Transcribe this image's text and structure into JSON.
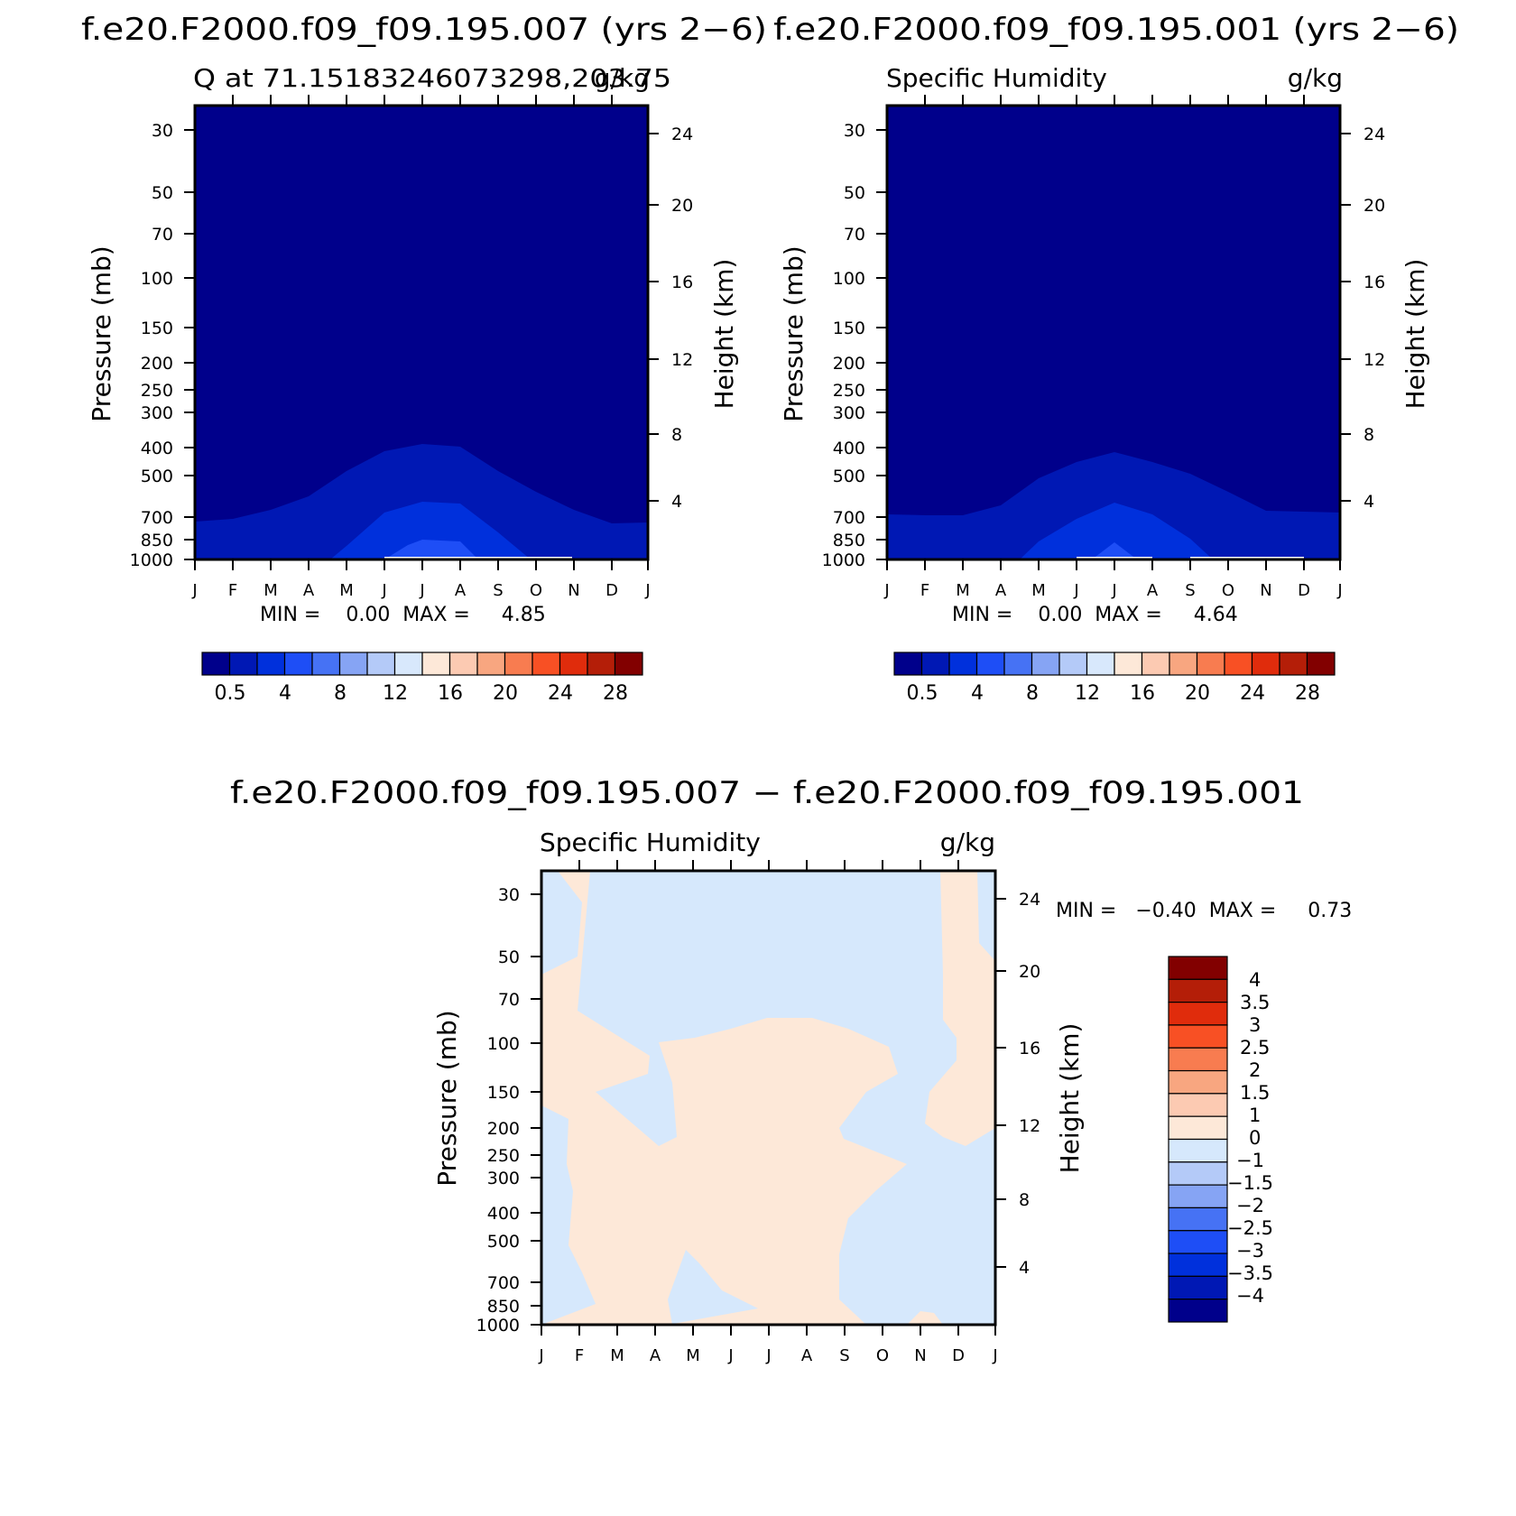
{
  "colors": {
    "abs_levels": [
      "#00008b",
      "#0018b4",
      "#0030dc",
      "#1e4ef6",
      "#4672f4",
      "#86a4f4",
      "#b4caf8",
      "#d8e8fc",
      "#fde8d8",
      "#fccab2",
      "#f8a680",
      "#f87c50",
      "#f85024",
      "#e02c0c",
      "#b41e08",
      "#820000"
    ],
    "diff_levels": [
      "#00008b",
      "#0018b4",
      "#0030dc",
      "#1e4ef6",
      "#4672f4",
      "#86a4f4",
      "#b4caf8",
      "#d6e8fc",
      "#fde8d8",
      "#fccab2",
      "#f8a680",
      "#f87c50",
      "#f85024",
      "#e02c0c",
      "#b41e08",
      "#820000"
    ],
    "frame": "#000000"
  },
  "panels": [
    {
      "title": "f.e20.F2000.f09_f09.195.007 (yrs 2−6)",
      "left_label": "Q at 71.15183246073298,203.75",
      "right_label": "g/kg",
      "minmax": "MIN =    0.00  MAX =     4.85",
      "colorbar_labels": [
        "0.5",
        "4",
        "8",
        "12",
        "16",
        "20",
        "24",
        "28"
      ]
    },
    {
      "title": "f.e20.F2000.f09_f09.195.001 (yrs 2−6)",
      "left_label": "Specific Humidity",
      "right_label": "g/kg",
      "minmax": "MIN =    0.00  MAX =     4.64",
      "colorbar_labels": [
        "0.5",
        "4",
        "8",
        "12",
        "16",
        "20",
        "24",
        "28"
      ]
    },
    {
      "title": "f.e20.F2000.f09_f09.195.007 − f.e20.F2000.f09_f09.195.001",
      "left_label": "Specific Humidity",
      "right_label": "g/kg",
      "minmax": "MIN =   −0.40  MAX =     0.73",
      "colorbar_labels": [
        "4",
        "3.5",
        "3",
        "2.5",
        "2",
        "1.5",
        "1",
        "0",
        "−1",
        "−1.5",
        "−2",
        "−2.5",
        "−3",
        "−3.5",
        "−4"
      ]
    }
  ],
  "chart_data": [
    {
      "type": "heatmap",
      "title": "f.e20.F2000.f09_f09.195.007 (yrs 2−6)",
      "xlabel": "",
      "ylabel": "Pressure (mb)",
      "y2label": "Height (km)",
      "x_ticks": [
        "J",
        "F",
        "M",
        "A",
        "M",
        "J",
        "J",
        "A",
        "S",
        "O",
        "N",
        "D",
        "J"
      ],
      "y_ticks": [
        30,
        50,
        70,
        100,
        150,
        200,
        250,
        300,
        400,
        500,
        700,
        850,
        1000
      ],
      "y2_ticks": [
        4,
        8,
        12,
        16,
        20,
        24
      ],
      "ylim": [
        1000,
        25
      ],
      "y_scale": "log",
      "contour_boundaries_mb": {
        "level_1": [
          [
            0,
            740
          ],
          [
            1,
            730
          ],
          [
            2,
            690
          ],
          [
            3,
            630
          ],
          [
            4,
            520
          ],
          [
            5,
            450
          ],
          [
            6,
            420
          ],
          [
            7,
            425
          ],
          [
            8,
            520
          ],
          [
            9,
            590
          ],
          [
            10,
            690
          ],
          [
            11,
            740
          ],
          [
            12,
            740
          ]
        ],
        "level_2": [
          [
            3.6,
            1000
          ],
          [
            4,
            890
          ],
          [
            5,
            720
          ],
          [
            6,
            660
          ],
          [
            7,
            670
          ],
          [
            8,
            770
          ],
          [
            8.8,
            1000
          ]
        ],
        "level_3": [
          [
            5,
            1000
          ],
          [
            5.6,
            900
          ],
          [
            6,
            850
          ],
          [
            7,
            860
          ],
          [
            7.5,
            1000
          ]
        ]
      },
      "max": 4.85,
      "min": 0.0
    },
    {
      "type": "heatmap",
      "title": "f.e20.F2000.f09_f09.195.001 (yrs 2−6)",
      "xlabel": "",
      "ylabel": "Pressure (mb)",
      "y2label": "Height (km)",
      "x_ticks": [
        "J",
        "F",
        "M",
        "A",
        "M",
        "J",
        "J",
        "A",
        "S",
        "O",
        "N",
        "D",
        "J"
      ],
      "y_ticks": [
        30,
        50,
        70,
        100,
        150,
        200,
        250,
        300,
        400,
        500,
        700,
        850,
        1000
      ],
      "y2_ticks": [
        4,
        8,
        12,
        16,
        20,
        24
      ],
      "ylim": [
        1000,
        25
      ],
      "y_scale": "log",
      "contour_boundaries_mb": {
        "level_1": [
          [
            0,
            680
          ],
          [
            1,
            690
          ],
          [
            2,
            690
          ],
          [
            3,
            640
          ],
          [
            4,
            530
          ],
          [
            5,
            470
          ],
          [
            6,
            430
          ],
          [
            7,
            470
          ],
          [
            8,
            520
          ],
          [
            9,
            590
          ],
          [
            10,
            680
          ],
          [
            11,
            690
          ],
          [
            12,
            690
          ]
        ],
        "level_2": [
          [
            3.5,
            1000
          ],
          [
            4,
            880
          ],
          [
            5,
            740
          ],
          [
            6,
            670
          ],
          [
            7,
            720
          ],
          [
            8,
            830
          ],
          [
            8.6,
            1000
          ]
        ],
        "level_3": [
          [
            5.4,
            1000
          ],
          [
            6,
            860
          ],
          [
            6.6,
            1000
          ]
        ]
      },
      "max": 4.64,
      "min": 0.0
    },
    {
      "type": "heatmap",
      "title": "f.e20.F2000.f09_f09.195.007 − f.e20.F2000.f09_f09.195.001",
      "xlabel": "",
      "ylabel": "Pressure (mb)",
      "y2label": "Height (km)",
      "x_ticks": [
        "J",
        "F",
        "M",
        "A",
        "M",
        "J",
        "J",
        "A",
        "S",
        "O",
        "N",
        "D",
        "J"
      ],
      "y_ticks": [
        30,
        50,
        70,
        100,
        150,
        200,
        250,
        300,
        400,
        500,
        700,
        850,
        1000
      ],
      "y2_ticks": [
        4,
        8,
        12,
        16,
        20,
        24
      ],
      "ylim": [
        1000,
        25
      ],
      "y_scale": "log",
      "max": 0.73,
      "min": -0.4
    }
  ]
}
